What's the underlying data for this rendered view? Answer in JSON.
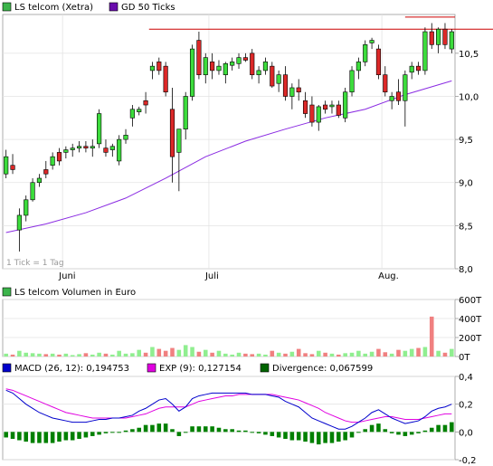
{
  "chart_data": [
    {
      "type": "candlestick",
      "legend": [
        {
          "label": "LS telcom (Xetra)",
          "color": "#3cb44b"
        },
        {
          "label": "GD 50 Ticks",
          "color": "#6a0dad"
        }
      ],
      "note": "1 Tick = 1 Tag",
      "x_labels": [
        "Juni",
        "Juli",
        "Aug."
      ],
      "y_ticks": [
        "10,5",
        "10,0",
        "9,5",
        "9,0",
        "8,5",
        "8,0"
      ],
      "ylim": [
        8.0,
        10.95
      ],
      "resistance": 10.78,
      "candles": [
        [
          9.1,
          9.38,
          9.05,
          9.3
        ],
        [
          9.2,
          9.33,
          9.1,
          9.15
        ],
        [
          8.45,
          8.7,
          8.2,
          8.62
        ],
        [
          8.62,
          8.85,
          8.55,
          8.8
        ],
        [
          8.8,
          9.05,
          8.78,
          9.0
        ],
        [
          9.0,
          9.1,
          8.95,
          9.05
        ],
        [
          9.15,
          9.25,
          9.05,
          9.1
        ],
        [
          9.2,
          9.35,
          9.15,
          9.3
        ],
        [
          9.35,
          9.4,
          9.2,
          9.25
        ],
        [
          9.35,
          9.42,
          9.28,
          9.38
        ],
        [
          9.38,
          9.45,
          9.3,
          9.4
        ],
        [
          9.4,
          9.48,
          9.35,
          9.42
        ],
        [
          9.42,
          9.48,
          9.35,
          9.4
        ],
        [
          9.4,
          9.5,
          9.3,
          9.42
        ],
        [
          9.45,
          9.85,
          9.4,
          9.8
        ],
        [
          9.4,
          9.5,
          9.3,
          9.35
        ],
        [
          9.38,
          9.45,
          9.3,
          9.42
        ],
        [
          9.25,
          9.55,
          9.2,
          9.5
        ],
        [
          9.5,
          9.62,
          9.45,
          9.55
        ],
        [
          9.75,
          9.9,
          9.65,
          9.85
        ],
        [
          9.82,
          9.88,
          9.78,
          9.85
        ],
        [
          9.95,
          10.05,
          9.8,
          9.9
        ],
        [
          10.3,
          10.4,
          10.2,
          10.35
        ],
        [
          10.4,
          10.45,
          10.25,
          10.3
        ],
        [
          10.35,
          10.4,
          10.0,
          10.05
        ],
        [
          9.85,
          10.1,
          9.0,
          9.3
        ],
        [
          9.35,
          9.6,
          8.9,
          9.62
        ],
        [
          9.62,
          10.05,
          9.5,
          10.0
        ],
        [
          10.0,
          10.6,
          9.95,
          10.55
        ],
        [
          10.65,
          10.75,
          10.2,
          10.25
        ],
        [
          10.25,
          10.5,
          10.15,
          10.45
        ],
        [
          10.4,
          10.5,
          10.2,
          10.3
        ],
        [
          10.3,
          10.42,
          10.25,
          10.35
        ],
        [
          10.25,
          10.4,
          10.15,
          10.38
        ],
        [
          10.36,
          10.45,
          10.3,
          10.4
        ],
        [
          10.38,
          10.5,
          10.32,
          10.45
        ],
        [
          10.45,
          10.5,
          10.4,
          10.42
        ],
        [
          10.5,
          10.55,
          10.2,
          10.25
        ],
        [
          10.25,
          10.35,
          10.15,
          10.3
        ],
        [
          10.3,
          10.45,
          10.25,
          10.4
        ],
        [
          10.35,
          10.4,
          10.1,
          10.12
        ],
        [
          10.15,
          10.3,
          10.05,
          10.25
        ],
        [
          10.25,
          10.35,
          9.95,
          10.0
        ],
        [
          10.0,
          10.15,
          9.85,
          10.1
        ],
        [
          10.1,
          10.2,
          9.95,
          10.05
        ],
        [
          9.95,
          10.05,
          9.75,
          9.8
        ],
        [
          9.9,
          10.0,
          9.65,
          9.7
        ],
        [
          9.7,
          9.9,
          9.6,
          9.88
        ],
        [
          9.9,
          9.95,
          9.8,
          9.85
        ],
        [
          9.88,
          9.95,
          9.8,
          9.9
        ],
        [
          9.9,
          9.95,
          9.75,
          9.78
        ],
        [
          9.75,
          10.1,
          9.7,
          10.05
        ],
        [
          10.05,
          10.35,
          10.0,
          10.3
        ],
        [
          10.3,
          10.45,
          10.2,
          10.4
        ],
        [
          10.4,
          10.65,
          10.35,
          10.6
        ],
        [
          10.62,
          10.68,
          10.55,
          10.65
        ],
        [
          10.55,
          10.6,
          10.2,
          10.25
        ],
        [
          10.25,
          10.35,
          10.0,
          10.05
        ],
        [
          9.95,
          10.05,
          9.85,
          10.0
        ],
        [
          10.05,
          10.2,
          9.9,
          9.95
        ],
        [
          9.95,
          10.3,
          9.65,
          10.25
        ],
        [
          10.28,
          10.4,
          10.2,
          10.35
        ],
        [
          10.35,
          10.4,
          10.25,
          10.3
        ],
        [
          10.3,
          10.8,
          10.25,
          10.75
        ],
        [
          10.75,
          10.85,
          10.55,
          10.6
        ],
        [
          10.6,
          10.8,
          10.5,
          10.78
        ],
        [
          10.78,
          10.85,
          10.55,
          10.6
        ],
        [
          10.55,
          10.78,
          10.5,
          10.75
        ]
      ],
      "sma": [
        [
          0,
          8.42
        ],
        [
          6,
          8.52
        ],
        [
          12,
          8.65
        ],
        [
          18,
          8.82
        ],
        [
          24,
          9.05
        ],
        [
          30,
          9.3
        ],
        [
          36,
          9.48
        ],
        [
          42,
          9.62
        ],
        [
          48,
          9.75
        ],
        [
          54,
          9.85
        ],
        [
          60,
          10.02
        ],
        [
          67,
          10.18
        ]
      ]
    },
    {
      "type": "bar",
      "legend": [
        {
          "label": "LS telcom Volumen in Euro",
          "color": "#3cb44b"
        }
      ],
      "y_ticks": [
        "600T",
        "400T",
        "200T",
        "0T"
      ],
      "ylim": [
        0,
        600
      ],
      "values": [
        30,
        20,
        60,
        40,
        35,
        30,
        25,
        30,
        20,
        30,
        15,
        25,
        35,
        20,
        40,
        30,
        20,
        60,
        30,
        35,
        70,
        40,
        100,
        80,
        60,
        90,
        70,
        120,
        100,
        50,
        70,
        40,
        60,
        30,
        20,
        40,
        30,
        25,
        30,
        20,
        60,
        40,
        30,
        50,
        80,
        35,
        25,
        60,
        40,
        30,
        20,
        35,
        40,
        60,
        30,
        50,
        80,
        45,
        30,
        70,
        60,
        80,
        90,
        100,
        420,
        60,
        40,
        80
      ]
    },
    {
      "type": "line",
      "legend": [
        {
          "label": "MACD (26, 12): 0,194753",
          "color": "#0000cc"
        },
        {
          "label": "EXP (9): 0,127154",
          "color": "#e000e0"
        },
        {
          "label": "Divergence: 0,067599",
          "color": "#006400"
        }
      ],
      "y_ticks": [
        "0,4",
        "0,2",
        "0,0",
        "-0,2"
      ],
      "ylim": [
        -0.2,
        0.4
      ],
      "macd": [
        0.3,
        0.28,
        0.24,
        0.2,
        0.17,
        0.14,
        0.12,
        0.1,
        0.09,
        0.08,
        0.07,
        0.07,
        0.07,
        0.08,
        0.09,
        0.09,
        0.1,
        0.1,
        0.11,
        0.12,
        0.15,
        0.17,
        0.2,
        0.23,
        0.24,
        0.2,
        0.15,
        0.18,
        0.24,
        0.26,
        0.27,
        0.28,
        0.28,
        0.28,
        0.28,
        0.28,
        0.28,
        0.27,
        0.27,
        0.27,
        0.26,
        0.25,
        0.22,
        0.2,
        0.18,
        0.14,
        0.1,
        0.08,
        0.06,
        0.04,
        0.02,
        0.02,
        0.04,
        0.07,
        0.1,
        0.14,
        0.16,
        0.13,
        0.1,
        0.08,
        0.06,
        0.07,
        0.08,
        0.11,
        0.15,
        0.17,
        0.18,
        0.2
      ],
      "exp": [
        0.31,
        0.3,
        0.28,
        0.26,
        0.24,
        0.22,
        0.2,
        0.18,
        0.16,
        0.14,
        0.13,
        0.12,
        0.11,
        0.1,
        0.1,
        0.1,
        0.1,
        0.1,
        0.1,
        0.11,
        0.12,
        0.13,
        0.15,
        0.17,
        0.18,
        0.18,
        0.18,
        0.18,
        0.2,
        0.22,
        0.23,
        0.24,
        0.25,
        0.26,
        0.26,
        0.27,
        0.27,
        0.27,
        0.27,
        0.27,
        0.27,
        0.26,
        0.25,
        0.24,
        0.23,
        0.21,
        0.19,
        0.17,
        0.14,
        0.12,
        0.1,
        0.08,
        0.07,
        0.07,
        0.08,
        0.09,
        0.1,
        0.11,
        0.11,
        0.1,
        0.09,
        0.09,
        0.09,
        0.1,
        0.11,
        0.12,
        0.13,
        0.13
      ],
      "divergence": [
        -0.04,
        -0.05,
        -0.06,
        -0.07,
        -0.08,
        -0.08,
        -0.08,
        -0.08,
        -0.07,
        -0.06,
        -0.06,
        -0.05,
        -0.04,
        -0.03,
        -0.02,
        -0.01,
        0.0,
        0.0,
        0.01,
        0.02,
        0.03,
        0.05,
        0.05,
        0.06,
        0.06,
        0.02,
        -0.03,
        0.0,
        0.04,
        0.04,
        0.04,
        0.04,
        0.03,
        0.02,
        0.02,
        0.01,
        0.01,
        0.0,
        -0.01,
        -0.02,
        -0.03,
        -0.04,
        -0.05,
        -0.06,
        -0.06,
        -0.07,
        -0.08,
        -0.09,
        -0.08,
        -0.08,
        -0.07,
        -0.06,
        -0.04,
        0.0,
        0.02,
        0.05,
        0.06,
        0.02,
        -0.01,
        -0.02,
        -0.03,
        -0.02,
        -0.01,
        0.01,
        0.03,
        0.05,
        0.05,
        0.07
      ]
    }
  ]
}
